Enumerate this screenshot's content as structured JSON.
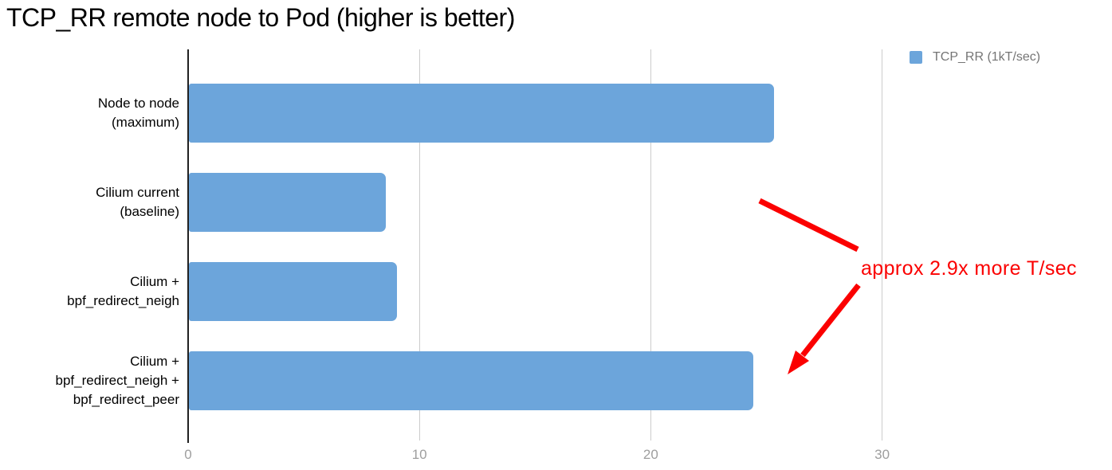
{
  "chart_data": {
    "type": "bar",
    "orientation": "horizontal",
    "title": "TCP_RR remote node to Pod (higher is better)",
    "categories": [
      "Node to node (maximum)",
      "Cilium current (baseline)",
      "Cilium + bpf_redirect_neigh",
      "Cilium + bpf_redirect_neigh + bpf_redirect_peer"
    ],
    "category_label_lines": [
      [
        "Node to node",
        "(maximum)"
      ],
      [
        "Cilium current",
        "(baseline)"
      ],
      [
        "Cilium +",
        "bpf_redirect_neigh"
      ],
      [
        "Cilium +",
        "bpf_redirect_neigh +",
        "bpf_redirect_peer"
      ]
    ],
    "series": [
      {
        "name": "TCP_RR (1kT/sec)",
        "values": [
          25.3,
          8.5,
          9.0,
          24.4
        ]
      }
    ],
    "xlabel": "",
    "ylabel": "",
    "xticks": [
      0,
      10,
      20,
      30
    ],
    "xlim": [
      0,
      40
    ],
    "grid": true,
    "legend_position": "top-right",
    "bar_color": "#6CA5DB",
    "annotation": "approx 2.9x more T/sec"
  },
  "legend": {
    "label": "TCP_RR (1kT/sec)",
    "swatch_color": "#6CA5DB"
  },
  "annotation": {
    "text": "approx 2.9x more T/sec",
    "color": "#FB0000"
  },
  "colors": {
    "bar": "#6CA5DB",
    "axis_line": "#212121",
    "gridline": "#CCCCCC",
    "tick_label": "#9E9E9E",
    "legend_text": "#757575",
    "category_label": "#000000"
  }
}
